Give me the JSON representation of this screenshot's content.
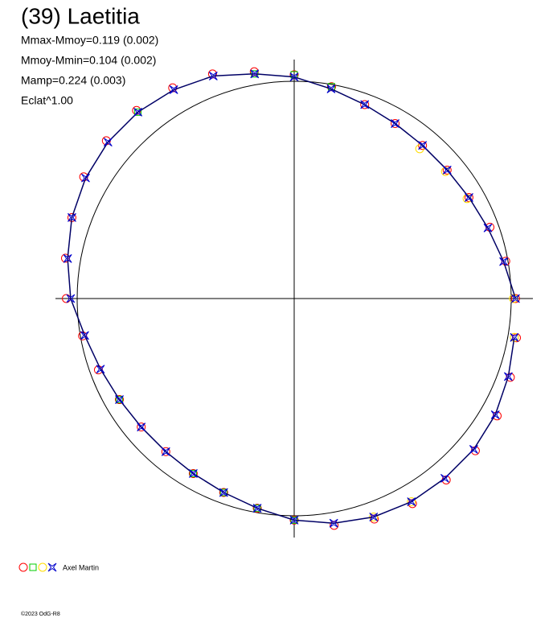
{
  "chart_data": {
    "type": "polar",
    "title": "(39) Laetitia",
    "stats": [
      "Mmax-Mmoy=0.119 (0.002)",
      "Mmoy-Mmin=0.104 (0.002)",
      "Mamp=0.224 (0.003)",
      "Eclat^1.00"
    ],
    "legend_label": "Axel Martin",
    "footer": "©2023 OdG-R8",
    "reference_circle": 1,
    "rmax": 1.1,
    "theta": [
      0,
      10,
      20,
      30,
      40,
      50,
      60,
      70,
      80,
      90,
      100,
      110,
      120,
      130,
      140,
      150,
      160,
      170,
      180,
      190,
      200,
      210,
      220,
      230,
      240,
      250,
      260,
      270,
      280,
      290,
      300,
      310,
      320,
      330,
      340,
      350
    ],
    "series": [
      {
        "color": "#ff0000",
        "marker": "circle",
        "values": [
          1.02,
          0.99,
          0.96,
          0.93,
          0.92,
          0.92,
          0.93,
          0.95,
          0.99,
          1.03,
          1.06,
          1.1,
          1.12,
          1.13,
          1.13,
          1.12,
          1.09,
          1.07,
          1.05,
          0.99,
          0.96,
          0.93,
          0.92,
          0.92,
          0.93,
          0.95,
          0.98,
          1.02,
          1.06,
          1.08,
          1.09,
          1.09,
          1.09,
          1.08,
          1.06,
          1.04
        ]
      },
      {
        "color": "#00cc00",
        "marker": "square",
        "values": [
          null,
          null,
          null,
          null,
          null,
          null,
          null,
          null,
          0.99,
          1.03,
          1.05,
          null,
          null,
          1.12,
          null,
          null,
          null,
          null,
          null,
          null,
          null,
          0.93,
          null,
          null,
          0.93,
          0.95,
          0.98,
          1.02,
          null,
          null,
          null,
          null,
          null,
          null,
          null,
          null
        ]
      },
      {
        "color": "#ffdd00",
        "marker": "circle",
        "values": [
          1.01,
          null,
          null,
          0.92,
          0.91,
          0.9,
          null,
          null,
          null,
          null,
          null,
          null,
          null,
          null,
          null,
          null,
          null,
          null,
          null,
          null,
          null,
          null,
          null,
          null,
          null,
          null,
          null,
          null,
          null,
          1.07,
          1.08,
          null,
          null,
          null,
          null,
          1.03
        ]
      },
      {
        "color": "#0000cc",
        "marker": "star",
        "values": [
          1.02,
          0.98,
          0.95,
          0.93,
          0.92,
          0.92,
          0.93,
          0.95,
          0.98,
          1.02,
          1.05,
          1.09,
          1.11,
          1.12,
          1.12,
          1.11,
          1.09,
          1.06,
          1.03,
          0.98,
          0.95,
          0.93,
          0.92,
          0.92,
          0.93,
          0.95,
          0.98,
          1.02,
          1.05,
          1.07,
          1.08,
          1.08,
          1.08,
          1.07,
          1.05,
          1.03
        ]
      }
    ]
  }
}
